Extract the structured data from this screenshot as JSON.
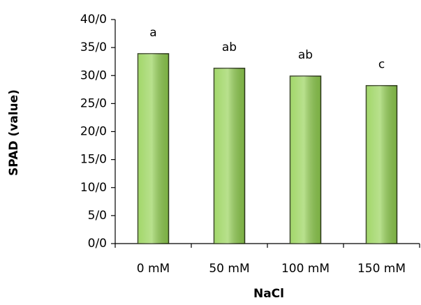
{
  "chart_data": {
    "type": "bar",
    "categories": [
      "0 mM",
      "50 mM",
      "100 mM",
      "150 mM"
    ],
    "values": [
      33.9,
      31.3,
      29.9,
      28.2
    ],
    "annotations": [
      "a",
      "ab",
      "ab",
      "c"
    ],
    "color": "#92d050",
    "x_label": "NaCl",
    "y_label": "SPAD (value)",
    "ylim": [
      0,
      40
    ],
    "yticks": [
      {
        "value": 0,
        "label": "0/0"
      },
      {
        "value": 5,
        "label": "5/0"
      },
      {
        "value": 10,
        "label": "10/0"
      },
      {
        "value": 15,
        "label": "15/0"
      },
      {
        "value": 20,
        "label": "20/0"
      },
      {
        "value": 25,
        "label": "25/0"
      },
      {
        "value": 30,
        "label": "30/0"
      },
      {
        "value": 35,
        "label": "35/0"
      },
      {
        "value": 40,
        "label": "40/0"
      }
    ]
  }
}
